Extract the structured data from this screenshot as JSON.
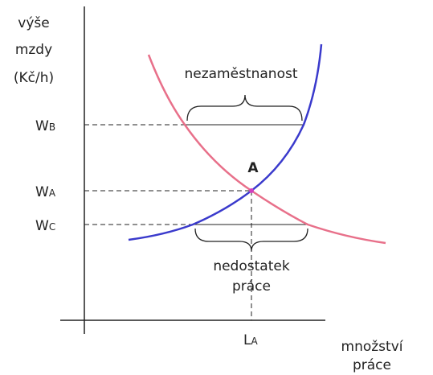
{
  "y_axis_label": [
    "výše",
    "mzdy",
    "(Kč/h)"
  ],
  "x_axis_label": [
    "množství",
    "práce"
  ],
  "levels": {
    "wb": {
      "main": "W",
      "sub": "B"
    },
    "wa": {
      "main": "W",
      "sub": "A"
    },
    "wc": {
      "main": "W",
      "sub": "C"
    }
  },
  "quantity": {
    "main": "L",
    "sub": "A"
  },
  "equilibrium": "A",
  "surplus_label": "nezaměstnanost",
  "shortage_label": [
    "nedostatek",
    "práce"
  ]
}
